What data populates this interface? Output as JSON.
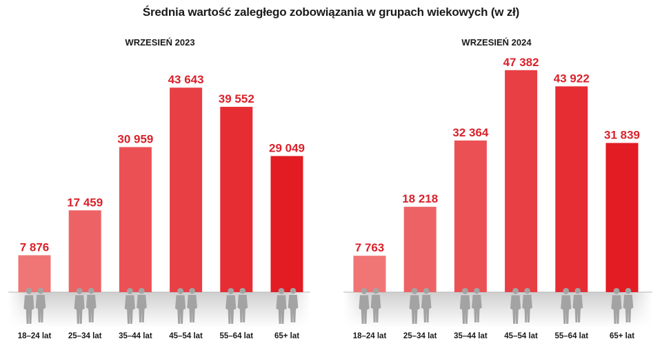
{
  "title": "Średnia wartość zaległego zobowiązania w grupach wiekowych (w zł)",
  "colors": {
    "bar_light": "#f07575",
    "bar_dark": "#e31b23",
    "value_text": "#d9212a",
    "silhouette": "#a3a3a3"
  },
  "icons": [
    "person-silhouette-icon"
  ],
  "chart_data": [
    {
      "type": "bar",
      "title": "WRZESIEŃ 2023",
      "categories": [
        "18–24 lat",
        "25–34 lat",
        "35–44 lat",
        "45–54 lat",
        "55–64 lat",
        "65+ lat"
      ],
      "values": [
        7876,
        17459,
        30959,
        43643,
        39552,
        29049
      ],
      "value_labels": [
        "7 876",
        "17 459",
        "30 959",
        "43 643",
        "39 552",
        "29 049"
      ],
      "ylim": [
        0,
        50000
      ],
      "grid": false,
      "legend": "none"
    },
    {
      "type": "bar",
      "title": "WRZESIEŃ 2024",
      "categories": [
        "18–24 lat",
        "25–34 lat",
        "35–44 lat",
        "45–54 lat",
        "55–64 lat",
        "65+ lat"
      ],
      "values": [
        7763,
        18218,
        32364,
        47382,
        43922,
        31839
      ],
      "value_labels": [
        "7 763",
        "18 218",
        "32 364",
        "47 382",
        "43 922",
        "31 839"
      ],
      "ylim": [
        0,
        50000
      ],
      "grid": false,
      "legend": "none"
    }
  ]
}
